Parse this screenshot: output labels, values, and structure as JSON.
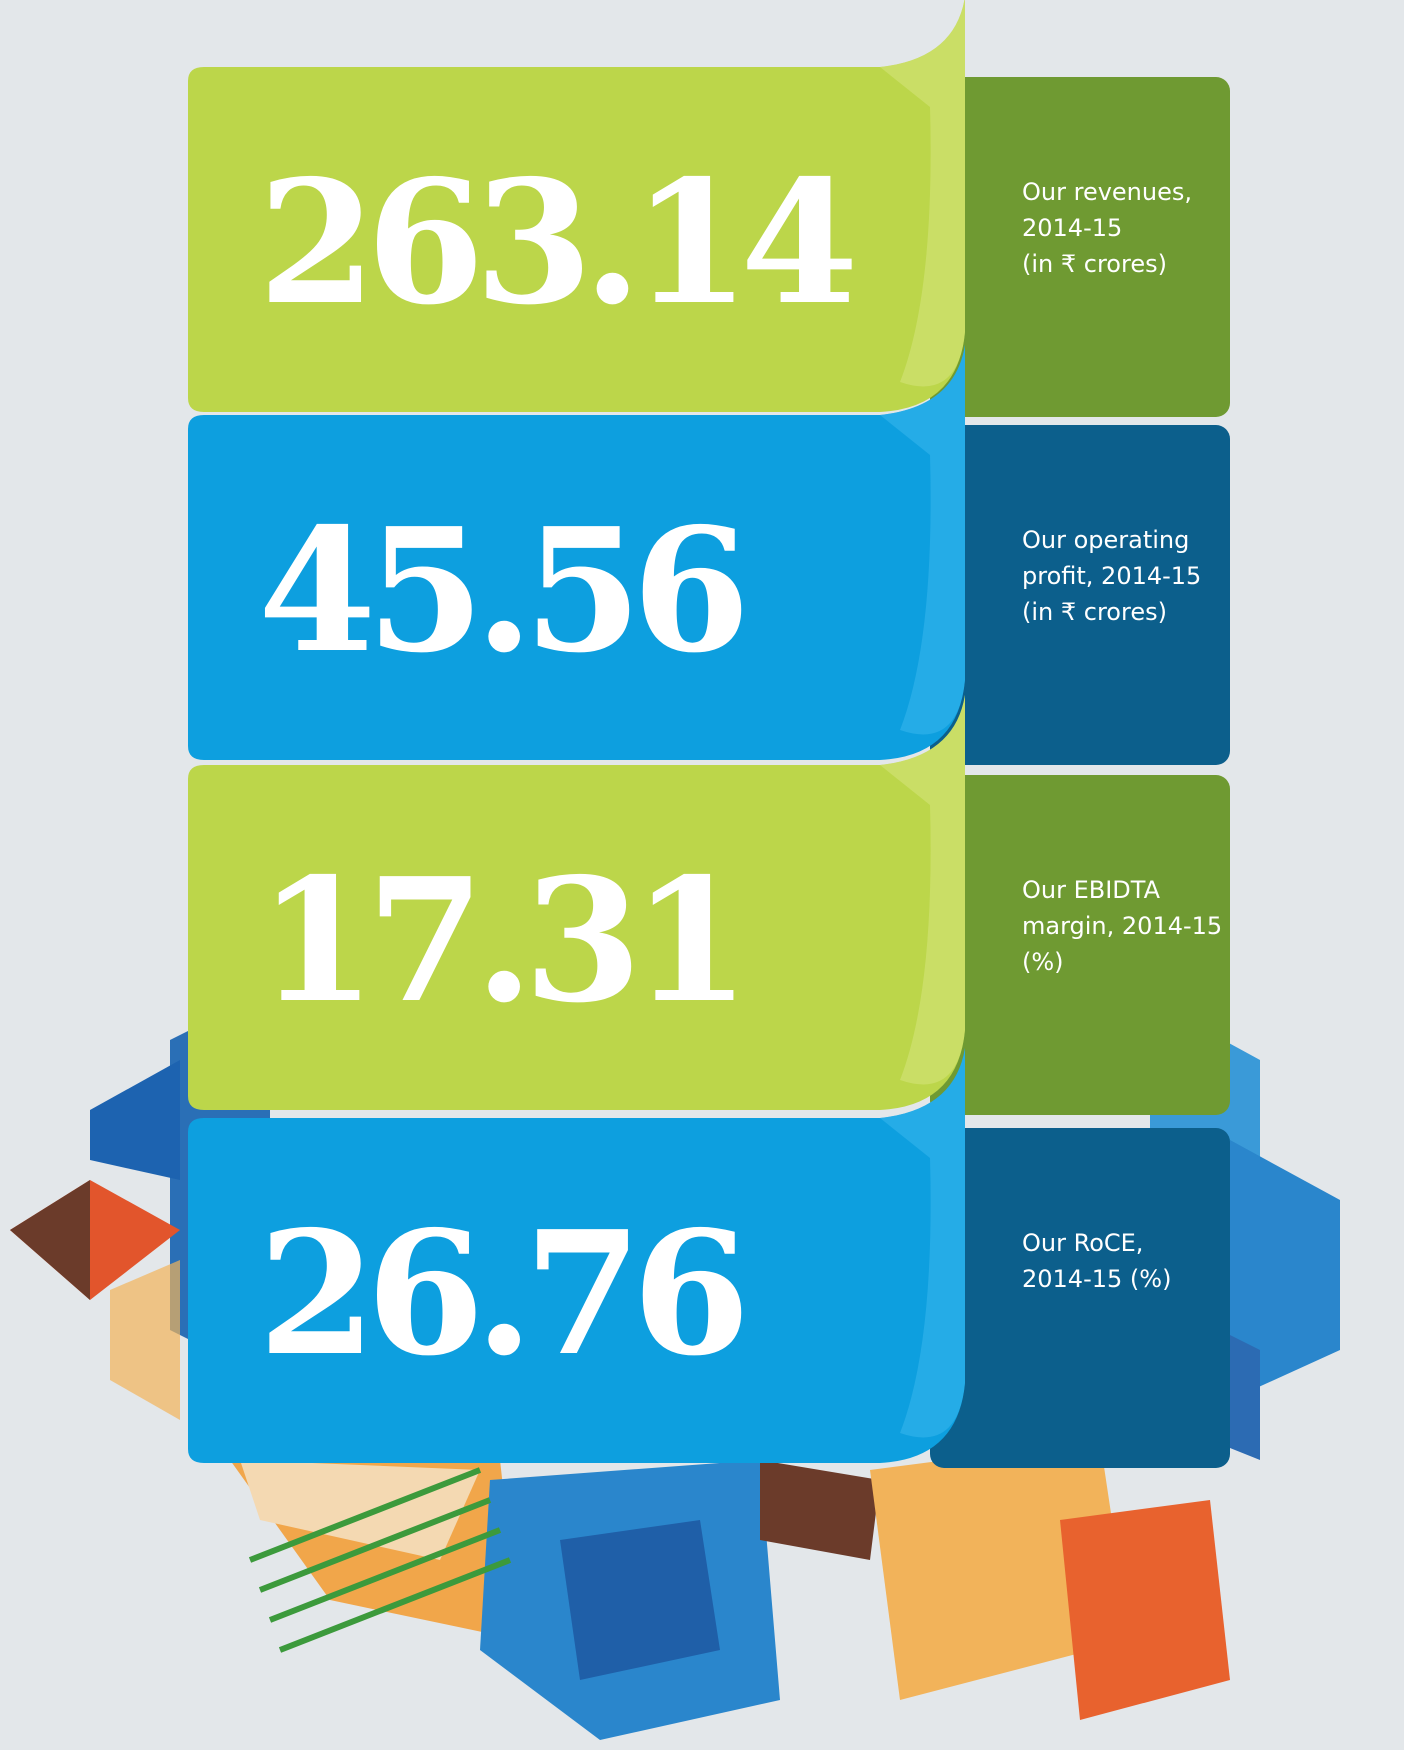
{
  "items": [
    {
      "value": "263.14",
      "label": [
        "Our revenues,",
        "2014-15",
        "(in ₹ crores)"
      ]
    },
    {
      "value": "45.56",
      "label": [
        "Our operating",
        "profit, 2014-15",
        "(in ₹ crores)"
      ]
    },
    {
      "value": "17.31",
      "label": [
        "Our EBIDTA",
        "margin, 2014-15",
        "(%)"
      ]
    },
    {
      "value": "26.76",
      "label": [
        "Our RoCE,",
        "2014-15 (%)"
      ]
    }
  ]
}
